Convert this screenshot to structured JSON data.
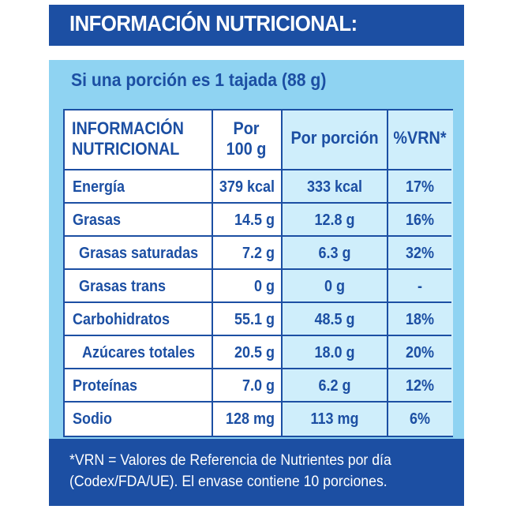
{
  "header": {
    "title": "INFORMACIÓN NUTRICIONAL:"
  },
  "serving": {
    "text": "Si una porción es 1 tajada (88 g)"
  },
  "table": {
    "col_headers": {
      "name_line1": "INFORMACIÓN",
      "name_line2": "NUTRICIONAL",
      "per100_line1": "Por",
      "per100_line2": "100 g",
      "per_portion": "Por porción",
      "vrn": "%VRN*"
    },
    "rows": [
      {
        "name": "Energía",
        "per100": "379 kcal",
        "portion": "333 kcal",
        "vrn": "17%"
      },
      {
        "name": "Grasas",
        "per100": "14.5 g",
        "portion": "12.8 g",
        "vrn": "16%"
      },
      {
        "name": "Grasas saturadas",
        "per100": "7.2 g",
        "portion": "6.3 g",
        "vrn": "32%"
      },
      {
        "name": "Grasas trans",
        "per100": "0 g",
        "portion": "0 g",
        "vrn": "-"
      },
      {
        "name": "Carbohidratos",
        "per100": "55.1 g",
        "portion": "48.5 g",
        "vrn": "18%"
      },
      {
        "name": "Azúcares totales",
        "per100": "20.5 g",
        "portion": "18.0 g",
        "vrn": "20%"
      },
      {
        "name": "Proteínas",
        "per100": "7.0 g",
        "portion": "6.2 g",
        "vrn": "12%"
      },
      {
        "name": "Sodio",
        "per100": "128 mg",
        "portion": "113 mg",
        "vrn": "6%"
      }
    ]
  },
  "footnote": {
    "line1": "*VRN = Valores de Referencia de Nutrientes por día",
    "line2": "(Codex/FDA/UE). El envase contiene 10 porciones."
  },
  "colors": {
    "brand_blue": "#1c4fa3",
    "panel_light_blue": "#8fd3f2",
    "cell_shade": "#cfeefb"
  }
}
